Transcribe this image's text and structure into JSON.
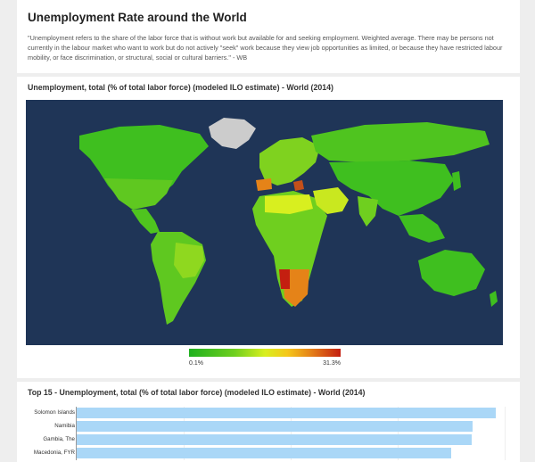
{
  "page": {
    "title": "Unemployment Rate around the World",
    "description": "\"Unemployment refers to the share of the labor force that is without work but available for and seeking employment. Weighted average. There may be persons not currently in the labour market who want to work but do not actively \"seek\" work because they view job opportunities as limited, or because they have restricted labour mobility, or face discrimination, or structural, social or cultural barriers.\" - WB"
  },
  "map": {
    "title": "Unemployment, total (% of total labor force) (modeled ILO estimate) - World (2014)",
    "legend_min": "0.1%",
    "legend_max": "31.3%",
    "colors": {
      "ocean": "#1f3557",
      "low": "#1fb01f",
      "mid": "#d8ef1f",
      "high": "#c41f10",
      "nodata": "#cccccc"
    }
  },
  "chart_data": {
    "type": "bar",
    "title": "Top 15 - Unemployment, total (% of total labor force) (modeled ILO estimate) - World (2014)",
    "categories": [
      "Solomon Islands",
      "Namibia",
      "Gambia, The",
      "Macedonia, FYR"
    ],
    "values": [
      31.3,
      29.6,
      29.5,
      28.0
    ],
    "xlim": [
      0,
      32
    ],
    "color": "#aad7f7"
  }
}
